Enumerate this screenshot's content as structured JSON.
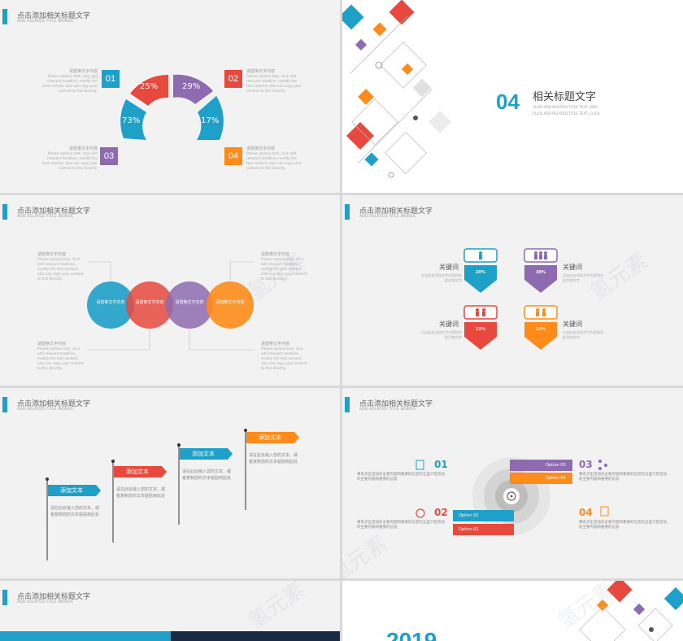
{
  "header": {
    "title": "点击添加相关标题文字",
    "subtitle": "ADD RELATED TITLE WORDS"
  },
  "watermark": "氢元素",
  "slide1": {
    "segments": [
      {
        "pct": "25%",
        "color": "#e8493f"
      },
      {
        "pct": "29%",
        "color": "#8e6bb0"
      },
      {
        "pct": "73%",
        "color": "#1ea0c8"
      },
      {
        "pct": "17%",
        "color": "#1ea0c8"
      }
    ],
    "markers": [
      {
        "num": "01",
        "color": "#1ea0c8"
      },
      {
        "num": "02",
        "color": "#e8493f"
      },
      {
        "num": "03",
        "color": "#8e6bb0"
      },
      {
        "num": "04",
        "color": "#ff8c1a"
      }
    ],
    "item_head": "请替换文字内容",
    "item_body": "Please replace text, click add relevant headline, modify the text content, also can copy your content to this directly."
  },
  "slide2": {
    "num": "04",
    "title": "相关标题文字",
    "line1": "CLICK ADD RELATED TITLE TEXT, ADD",
    "line2": "CLICK ADD RELATED TITLE TEXT, CLICK"
  },
  "slide3": {
    "circles": [
      {
        "label": "请替换文字内容",
        "color": "#1ea0c8"
      },
      {
        "label": "请替换文字内容",
        "color": "#e8493f"
      },
      {
        "label": "请替换文字内容",
        "color": "#8e6bb0"
      },
      {
        "label": "请替换文字内容",
        "color": "#ff8c1a"
      }
    ],
    "note_head": "请替换文字内容",
    "note_body": "Please replace text, click add relevant headline, modify the text content, also can copy your content to this directly."
  },
  "slide4": {
    "items": [
      {
        "keyword": "关键词",
        "pct": "20%",
        "color": "#1ea0c8",
        "desc": "点击此处添加文字内容和在此添加文字"
      },
      {
        "keyword": "关键词",
        "pct": "30%",
        "color": "#8e6bb0",
        "desc": "点击此处添加文字内容和在此添加文字"
      },
      {
        "keyword": "关键词",
        "pct": "25%",
        "color": "#e8493f",
        "desc": "点击此处添加文字内容和在此添加文字"
      },
      {
        "keyword": "关键词",
        "pct": "25%",
        "color": "#ff8c1a",
        "desc": "点击此处添加文字内容和在此添加文字"
      }
    ]
  },
  "slide5": {
    "flags": [
      {
        "label": "添加文本",
        "color": "#1ea0c8"
      },
      {
        "label": "添加文本",
        "color": "#e8493f"
      },
      {
        "label": "添加文本",
        "color": "#1ea0c8"
      },
      {
        "label": "添加文本",
        "color": "#ff8c1a"
      }
    ],
    "desc": "请在此处输入您的文本，或者复制您的文本粘贴到此处"
  },
  "slide6": {
    "items": [
      {
        "num": "01",
        "color": "#1ea0c8",
        "option": "Option 01"
      },
      {
        "num": "02",
        "color": "#e8493f",
        "option": "Option 02"
      },
      {
        "num": "03",
        "color": "#8e6bb0",
        "option": "Option 03"
      },
      {
        "num": "04",
        "color": "#ff8c1a",
        "option": "Option 04"
      }
    ],
    "desc": "事先点出活动的主要内容和重要的信息在这里介绍活动的主要内容和重要的信息"
  },
  "slide8": {
    "year": "2019"
  }
}
